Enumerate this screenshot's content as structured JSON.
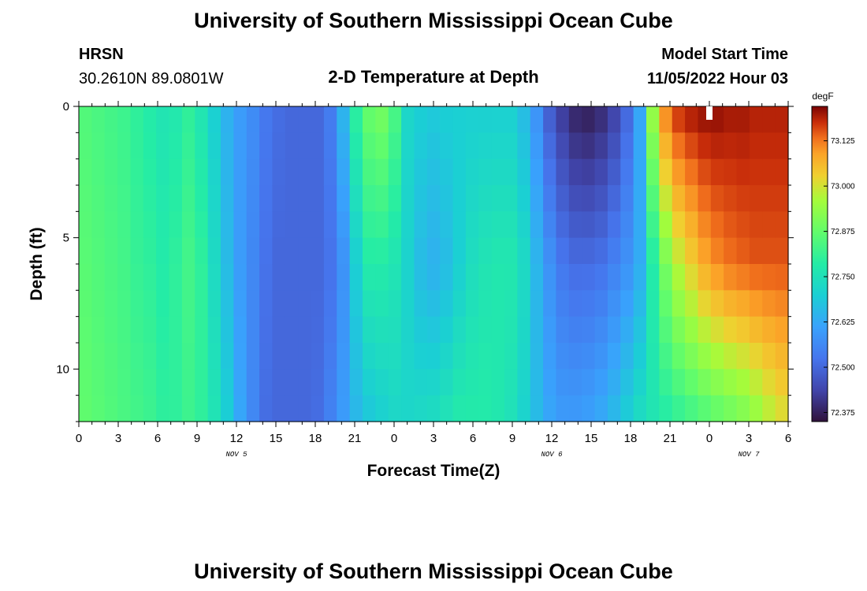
{
  "header": {
    "title": "University of Southern Mississippi Ocean Cube",
    "station": "HRSN",
    "coordinates": "30.2610N  89.0801W",
    "subtitle": "2-D Temperature at Depth",
    "model_start_label": "Model Start Time",
    "model_start_value": "11/05/2022 Hour 03"
  },
  "footer": {
    "title": "University of Southern Mississippi Ocean Cube"
  },
  "chart_data": {
    "type": "heatmap",
    "title": "2-D Temperature at Depth",
    "xlabel": "Forecast Time(Z)",
    "ylabel": "Depth (ft)",
    "x_range_hours": [
      0,
      54
    ],
    "y_range_ft": [
      0,
      12
    ],
    "y_inverted": true,
    "x_ticks": [
      {
        "hour": 0,
        "label": "0"
      },
      {
        "hour": 3,
        "label": "3"
      },
      {
        "hour": 6,
        "label": "6"
      },
      {
        "hour": 9,
        "label": "9"
      },
      {
        "hour": 12,
        "label": "12"
      },
      {
        "hour": 15,
        "label": "15"
      },
      {
        "hour": 18,
        "label": "18"
      },
      {
        "hour": 21,
        "label": "21"
      },
      {
        "hour": 24,
        "label": "0"
      },
      {
        "hour": 27,
        "label": "3"
      },
      {
        "hour": 30,
        "label": "6"
      },
      {
        "hour": 33,
        "label": "9"
      },
      {
        "hour": 36,
        "label": "12"
      },
      {
        "hour": 39,
        "label": "15"
      },
      {
        "hour": 42,
        "label": "18"
      },
      {
        "hour": 45,
        "label": "21"
      },
      {
        "hour": 48,
        "label": "0"
      },
      {
        "hour": 51,
        "label": "3"
      },
      {
        "hour": 54,
        "label": "6"
      }
    ],
    "date_labels": [
      {
        "hour": 12,
        "label": "NOV 5"
      },
      {
        "hour": 36,
        "label": "NOV 6"
      },
      {
        "hour": 51,
        "label": "NOV 7"
      }
    ],
    "y_ticks": [
      {
        "depth": 0,
        "label": "0"
      },
      {
        "depth": 5,
        "label": "5"
      },
      {
        "depth": 10,
        "label": "10"
      }
    ],
    "colorbar": {
      "unit": "degF",
      "min": 72.35,
      "max": 73.22,
      "ticks": [
        {
          "value": 73.125,
          "label": "73.125"
        },
        {
          "value": 73.0,
          "label": "73.000"
        },
        {
          "value": 72.875,
          "label": "72.875"
        },
        {
          "value": 72.75,
          "label": "72.750"
        },
        {
          "value": 72.625,
          "label": "72.625"
        },
        {
          "value": 72.5,
          "label": "72.500"
        },
        {
          "value": 72.375,
          "label": "72.375"
        }
      ]
    },
    "profile_depths_ft": [
      0,
      6,
      12
    ],
    "profile_hours": [
      0,
      1,
      2,
      3,
      4,
      5,
      6,
      7,
      8,
      9,
      10,
      11,
      12,
      13,
      14,
      15,
      16,
      17,
      18,
      19,
      20,
      21,
      22,
      23,
      24,
      25,
      26,
      27,
      28,
      29,
      30,
      31,
      32,
      33,
      34,
      35,
      36,
      37,
      38,
      39,
      40,
      41,
      42,
      43,
      44,
      45,
      46,
      47,
      48,
      49,
      50,
      51,
      52,
      53,
      54
    ],
    "temperature_degF": {
      "surface_0ft": [
        72.85,
        72.84,
        72.83,
        72.82,
        72.8,
        72.78,
        72.76,
        72.77,
        72.8,
        72.76,
        72.7,
        72.64,
        72.6,
        72.57,
        72.53,
        72.51,
        72.5,
        72.5,
        72.5,
        72.54,
        72.65,
        72.8,
        72.88,
        72.9,
        72.84,
        72.72,
        72.7,
        72.69,
        72.7,
        72.7,
        72.7,
        72.7,
        72.7,
        72.7,
        72.66,
        72.58,
        72.48,
        72.42,
        72.38,
        72.37,
        72.39,
        72.43,
        72.5,
        72.62,
        72.95,
        73.12,
        73.18,
        73.2,
        73.21,
        73.21,
        73.2,
        73.2,
        73.19,
        73.19,
        73.19
      ],
      "mid_6ft": [
        72.86,
        72.85,
        72.84,
        72.83,
        72.81,
        72.8,
        72.78,
        72.8,
        72.83,
        72.8,
        72.73,
        72.66,
        72.6,
        72.56,
        72.52,
        72.5,
        72.5,
        72.5,
        72.5,
        72.52,
        72.58,
        72.7,
        72.78,
        72.78,
        72.76,
        72.71,
        72.66,
        72.64,
        72.66,
        72.7,
        72.74,
        72.76,
        72.77,
        72.77,
        72.73,
        72.65,
        72.58,
        72.53,
        72.51,
        72.51,
        72.52,
        72.55,
        72.58,
        72.63,
        72.78,
        72.9,
        72.98,
        73.03,
        73.08,
        73.11,
        73.13,
        73.14,
        73.15,
        73.15,
        73.15
      ],
      "bottom_12ft": [
        72.87,
        72.86,
        72.85,
        72.84,
        72.83,
        72.82,
        72.8,
        72.8,
        72.82,
        72.8,
        72.76,
        72.7,
        72.62,
        72.56,
        72.51,
        72.5,
        72.5,
        72.5,
        72.51,
        72.55,
        72.6,
        72.65,
        72.68,
        72.7,
        72.72,
        72.72,
        72.73,
        72.74,
        72.76,
        72.78,
        72.78,
        72.78,
        72.77,
        72.75,
        72.71,
        72.66,
        72.62,
        72.6,
        72.6,
        72.61,
        72.63,
        72.66,
        72.7,
        72.74,
        72.76,
        72.78,
        72.8,
        72.82,
        72.84,
        72.86,
        72.88,
        72.9,
        72.93,
        72.97,
        73.0
      ]
    },
    "annotation_marker": {
      "hour": 48,
      "depth_ft": 0
    }
  }
}
